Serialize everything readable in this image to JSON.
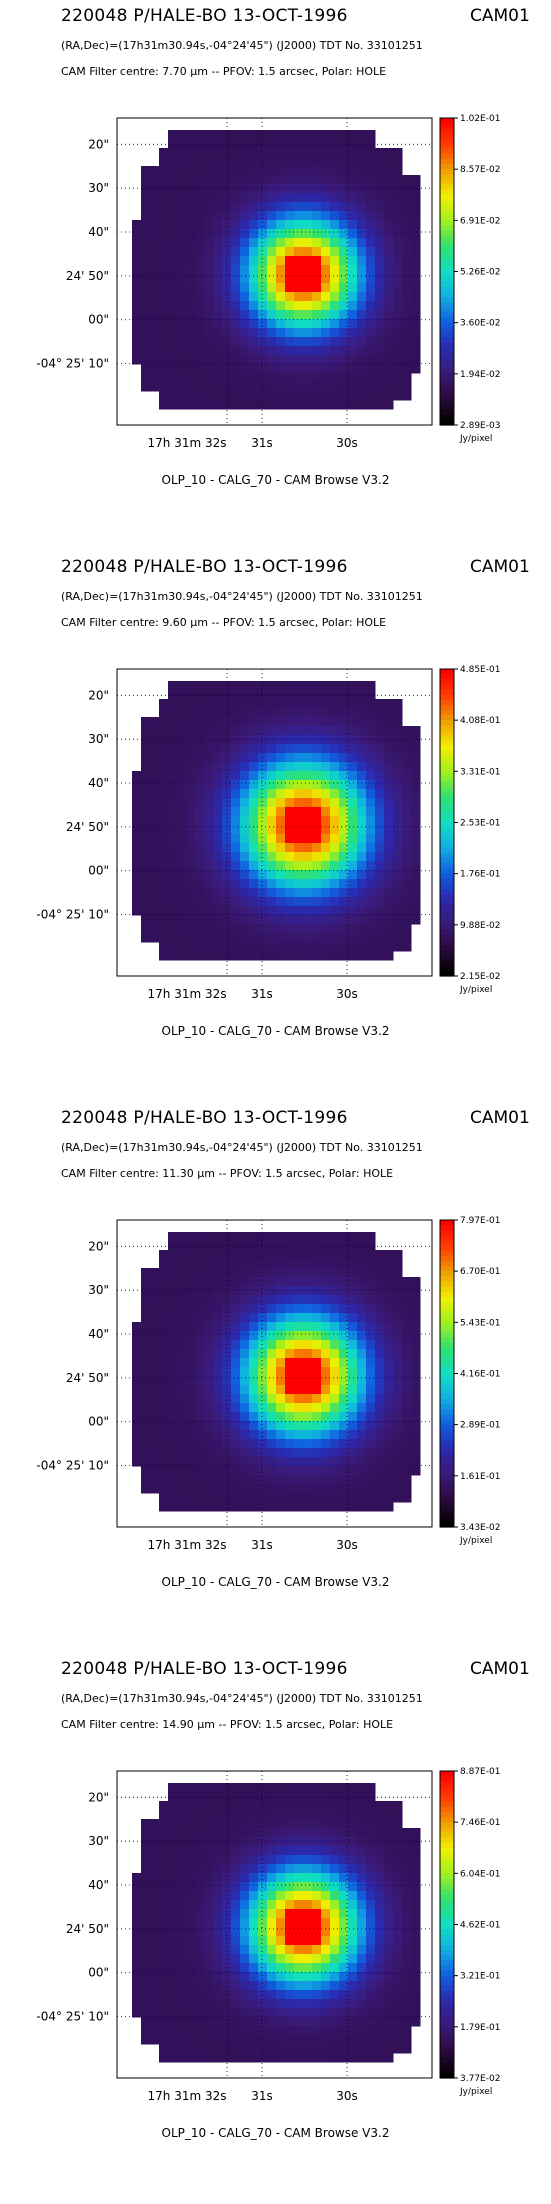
{
  "colors": {
    "background": "#ffffff",
    "colormap": [
      "#000000",
      "#2a0a40",
      "#3b1a78",
      "#2a2ab0",
      "#1060e0",
      "#10b0e0",
      "#10e0c0",
      "#30e070",
      "#a0f020",
      "#f0f000",
      "#f0a000",
      "#ff4000",
      "#ff0000"
    ]
  },
  "axes": {
    "y_ticks": [
      "20\"",
      "30\"",
      "40\"",
      "24' 50\"",
      "00\"",
      "-04° 25' 10\""
    ],
    "x_ticks": [
      "17h 31m 32s",
      "31s",
      "30s"
    ],
    "colorbar_unit": "Jy/pixel"
  },
  "panels": [
    {
      "title": "220048 P/HALE-BO 13-OCT-1996",
      "camera": "CAM01",
      "coords": "(RA,Dec)=(17h31m30.94s,-04°24'45\") (J2000) TDT No. 33101251",
      "filter": "CAM  Filter  centre:  7.70 µm --   PFOV:  1.5 arcsec, Polar: HOLE",
      "footer": "OLP_10    - CALG_70   - CAM Browse V3.2",
      "colorbar_labels": [
        "1.02E-01",
        "8.57E-02",
        "6.91E-02",
        "5.26E-02",
        "3.60E-02",
        "1.94E-02",
        "2.89E-03"
      ]
    },
    {
      "title": "220048 P/HALE-BO 13-OCT-1996",
      "camera": "CAM01",
      "coords": "(RA,Dec)=(17h31m30.94s,-04°24'45\") (J2000) TDT No. 33101251",
      "filter": "CAM  Filter  centre:  9.60 µm --   PFOV:  1.5 arcsec, Polar: HOLE",
      "footer": "OLP_10    - CALG_70   - CAM Browse V3.2",
      "colorbar_labels": [
        "4.85E-01",
        "4.08E-01",
        "3.31E-01",
        "2.53E-01",
        "1.76E-01",
        "9.88E-02",
        "2.15E-02"
      ]
    },
    {
      "title": "220048 P/HALE-BO 13-OCT-1996",
      "camera": "CAM01",
      "coords": "(RA,Dec)=(17h31m30.94s,-04°24'45\") (J2000) TDT No. 33101251",
      "filter": "CAM  Filter  centre: 11.30 µm --   PFOV:  1.5 arcsec, Polar: HOLE",
      "footer": "OLP_10    - CALG_70   - CAM Browse V3.2",
      "colorbar_labels": [
        "7.97E-01",
        "6.70E-01",
        "5.43E-01",
        "4.16E-01",
        "2.89E-01",
        "1.61E-01",
        "3.43E-02"
      ]
    },
    {
      "title": "220048 P/HALE-BO 13-OCT-1996",
      "camera": "CAM01",
      "coords": "(RA,Dec)=(17h31m30.94s,-04°24'45\") (J2000) TDT No. 33101251",
      "filter": "CAM  Filter  centre: 14.90 µm --   PFOV:  1.5 arcsec, Polar: HOLE",
      "footer": "OLP_10    - CALG_70   - CAM Browse V3.2",
      "colorbar_labels": [
        "8.87E-01",
        "7.46E-01",
        "6.04E-01",
        "4.62E-01",
        "3.21E-01",
        "1.79E-01",
        "3.77E-02"
      ]
    }
  ]
}
